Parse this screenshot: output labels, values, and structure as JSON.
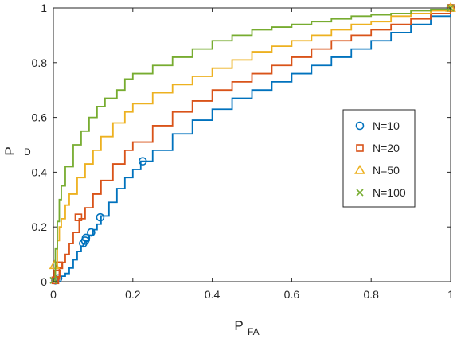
{
  "chart_data": {
    "type": "line",
    "title": "",
    "xlabel": "P",
    "xlabel_sub": "FA",
    "ylabel": "P",
    "ylabel_sub": "D",
    "xlim": [
      0,
      1
    ],
    "ylim": [
      0,
      1
    ],
    "xticks": [
      0,
      0.2,
      0.4,
      0.6,
      0.8,
      1
    ],
    "yticks": [
      0,
      0.2,
      0.4,
      0.6,
      0.8,
      1
    ],
    "xtick_labels": [
      "0",
      "0.2",
      "0.4",
      "0.6",
      "0.8",
      "1"
    ],
    "ytick_labels": [
      "0",
      "0.2",
      "0.4",
      "0.6",
      "0.8",
      "1"
    ],
    "grid": false,
    "legend_position": "right",
    "series": [
      {
        "name": "N=10",
        "color": "#0072BD",
        "marker": "circle",
        "points": [
          [
            0,
            0
          ],
          [
            0.005,
            0.005
          ],
          [
            0.01,
            0.01
          ],
          [
            0.02,
            0.02
          ],
          [
            0.03,
            0.03
          ],
          [
            0.04,
            0.05
          ],
          [
            0.05,
            0.08
          ],
          [
            0.06,
            0.11
          ],
          [
            0.07,
            0.13
          ],
          [
            0.075,
            0.14
          ],
          [
            0.08,
            0.15
          ],
          [
            0.09,
            0.17
          ],
          [
            0.1,
            0.19
          ],
          [
            0.11,
            0.21
          ],
          [
            0.12,
            0.24
          ],
          [
            0.14,
            0.29
          ],
          [
            0.16,
            0.34
          ],
          [
            0.18,
            0.38
          ],
          [
            0.2,
            0.41
          ],
          [
            0.22,
            0.44
          ],
          [
            0.25,
            0.48
          ],
          [
            0.3,
            0.54
          ],
          [
            0.35,
            0.59
          ],
          [
            0.4,
            0.63
          ],
          [
            0.45,
            0.67
          ],
          [
            0.5,
            0.7
          ],
          [
            0.55,
            0.73
          ],
          [
            0.6,
            0.76
          ],
          [
            0.65,
            0.79
          ],
          [
            0.7,
            0.82
          ],
          [
            0.75,
            0.85
          ],
          [
            0.8,
            0.88
          ],
          [
            0.85,
            0.91
          ],
          [
            0.9,
            0.94
          ],
          [
            0.95,
            0.97
          ],
          [
            1,
            1
          ]
        ],
        "markers": [
          [
            0.005,
            0.005
          ],
          [
            0.012,
            0.012
          ],
          [
            0.075,
            0.14
          ],
          [
            0.08,
            0.15
          ],
          [
            0.082,
            0.16
          ],
          [
            0.095,
            0.18
          ],
          [
            0.118,
            0.235
          ],
          [
            0.225,
            0.44
          ],
          [
            1,
            1
          ]
        ]
      },
      {
        "name": "N=20",
        "color": "#D95319",
        "marker": "square",
        "points": [
          [
            0,
            0
          ],
          [
            0.01,
            0.01
          ],
          [
            0.015,
            0.05
          ],
          [
            0.02,
            0.07
          ],
          [
            0.03,
            0.1
          ],
          [
            0.04,
            0.14
          ],
          [
            0.05,
            0.18
          ],
          [
            0.065,
            0.23
          ],
          [
            0.08,
            0.27
          ],
          [
            0.1,
            0.32
          ],
          [
            0.12,
            0.37
          ],
          [
            0.15,
            0.43
          ],
          [
            0.18,
            0.48
          ],
          [
            0.2,
            0.51
          ],
          [
            0.25,
            0.57
          ],
          [
            0.3,
            0.62
          ],
          [
            0.35,
            0.66
          ],
          [
            0.4,
            0.7
          ],
          [
            0.45,
            0.73
          ],
          [
            0.5,
            0.76
          ],
          [
            0.55,
            0.79
          ],
          [
            0.6,
            0.82
          ],
          [
            0.65,
            0.85
          ],
          [
            0.7,
            0.88
          ],
          [
            0.75,
            0.9
          ],
          [
            0.8,
            0.92
          ],
          [
            0.85,
            0.94
          ],
          [
            0.9,
            0.96
          ],
          [
            0.95,
            0.98
          ],
          [
            1,
            1
          ]
        ],
        "markers": [
          [
            0.005,
            0.005
          ],
          [
            0.01,
            0.03
          ],
          [
            0.015,
            0.06
          ],
          [
            0.063,
            0.235
          ],
          [
            1,
            1
          ]
        ]
      },
      {
        "name": "N=50",
        "color": "#EDB120",
        "marker": "triangle",
        "points": [
          [
            0,
            0
          ],
          [
            0.005,
            0.05
          ],
          [
            0.01,
            0.15
          ],
          [
            0.015,
            0.2
          ],
          [
            0.02,
            0.23
          ],
          [
            0.03,
            0.28
          ],
          [
            0.04,
            0.32
          ],
          [
            0.06,
            0.38
          ],
          [
            0.08,
            0.43
          ],
          [
            0.1,
            0.48
          ],
          [
            0.12,
            0.53
          ],
          [
            0.15,
            0.58
          ],
          [
            0.18,
            0.62
          ],
          [
            0.2,
            0.65
          ],
          [
            0.25,
            0.69
          ],
          [
            0.3,
            0.72
          ],
          [
            0.35,
            0.75
          ],
          [
            0.4,
            0.78
          ],
          [
            0.45,
            0.81
          ],
          [
            0.5,
            0.84
          ],
          [
            0.55,
            0.86
          ],
          [
            0.6,
            0.88
          ],
          [
            0.65,
            0.9
          ],
          [
            0.7,
            0.92
          ],
          [
            0.75,
            0.94
          ],
          [
            0.8,
            0.95
          ],
          [
            0.85,
            0.97
          ],
          [
            0.9,
            0.98
          ],
          [
            0.95,
            0.99
          ],
          [
            1,
            1
          ]
        ],
        "markers": [
          [
            0.003,
            0.06
          ],
          [
            1,
            1
          ]
        ]
      },
      {
        "name": "N=100",
        "color": "#77AC30",
        "marker": "x",
        "points": [
          [
            0,
            0
          ],
          [
            0.005,
            0.12
          ],
          [
            0.01,
            0.22
          ],
          [
            0.015,
            0.3
          ],
          [
            0.02,
            0.35
          ],
          [
            0.03,
            0.42
          ],
          [
            0.05,
            0.5
          ],
          [
            0.07,
            0.55
          ],
          [
            0.09,
            0.6
          ],
          [
            0.11,
            0.64
          ],
          [
            0.13,
            0.67
          ],
          [
            0.16,
            0.7
          ],
          [
            0.18,
            0.74
          ],
          [
            0.2,
            0.76
          ],
          [
            0.25,
            0.79
          ],
          [
            0.3,
            0.82
          ],
          [
            0.35,
            0.85
          ],
          [
            0.4,
            0.88
          ],
          [
            0.45,
            0.9
          ],
          [
            0.5,
            0.92
          ],
          [
            0.55,
            0.93
          ],
          [
            0.6,
            0.94
          ],
          [
            0.65,
            0.95
          ],
          [
            0.7,
            0.96
          ],
          [
            0.75,
            0.97
          ],
          [
            0.8,
            0.975
          ],
          [
            0.85,
            0.98
          ],
          [
            0.9,
            0.99
          ],
          [
            0.95,
            0.995
          ],
          [
            1,
            1
          ]
        ],
        "markers": [
          [
            0,
            0.005
          ],
          [
            1,
            1
          ]
        ]
      }
    ]
  }
}
